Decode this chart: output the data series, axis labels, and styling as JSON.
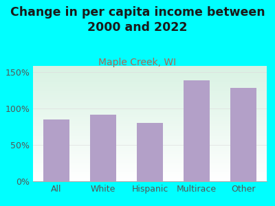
{
  "title": "Change in per capita income between\n2000 and 2022",
  "subtitle": "Maple Creek, WI",
  "categories": [
    "All",
    "White",
    "Hispanic",
    "Multirace",
    "Other"
  ],
  "values": [
    85,
    91,
    80,
    138,
    128
  ],
  "bar_color": "#b3a0c8",
  "title_fontsize": 12.5,
  "subtitle_fontsize": 10,
  "tick_fontsize": 9,
  "background_color": "#00FFFF",
  "yticks": [
    0,
    50,
    100,
    150
  ],
  "ylim": [
    0,
    158
  ],
  "subtitle_color": "#aa6655",
  "title_color": "#1a1a1a",
  "tick_color": "#555555",
  "plot_bg_color1": "#d4ede4",
  "plot_bg_color2": "#f8fff8",
  "grid_color": "#dddddd"
}
